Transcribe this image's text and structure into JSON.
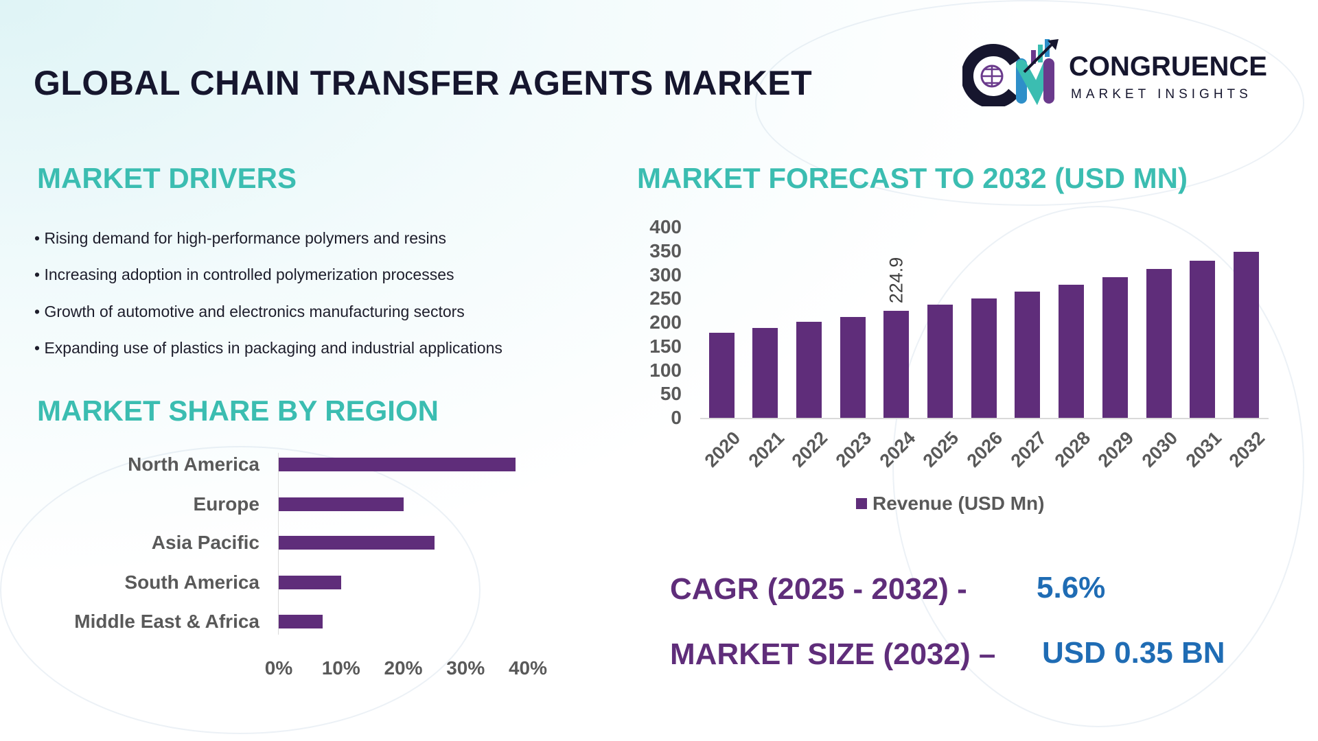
{
  "header": {
    "title": "GLOBAL CHAIN TRANSFER AGENTS MARKET",
    "logo": {
      "name": "CONGRUENCE",
      "tagline": "MARKET INSIGHTS",
      "mark": "CM"
    }
  },
  "drivers": {
    "title": "MARKET DRIVERS",
    "items": [
      "• Rising demand for high-performance polymers and resins",
      "• Increasing adoption in controlled polymerization processes",
      "• Growth of automotive and electronics manufacturing sectors",
      "• Expanding use of plastics in packaging and industrial applications"
    ]
  },
  "colors": {
    "teal": "#3bbdb1",
    "purple": "#5f2d7a",
    "blue": "#1f6cb4",
    "navy": "#16162e"
  },
  "chart_data": [
    {
      "type": "bar",
      "orientation": "horizontal",
      "title": "MARKET SHARE BY REGION",
      "categories": [
        "North America",
        "Europe",
        "Asia Pacific",
        "South America",
        "Middle East & Africa"
      ],
      "values": [
        38,
        20,
        25,
        10,
        7
      ],
      "unit": "%",
      "xlim": [
        0,
        40
      ],
      "xticks": [
        "0%",
        "10%",
        "20%",
        "30%",
        "40%"
      ],
      "grid": false
    },
    {
      "type": "bar",
      "title": "MARKET FORECAST TO 2032 (USD MN)",
      "categories": [
        "2020",
        "2021",
        "2022",
        "2023",
        "2024",
        "2025",
        "2026",
        "2027",
        "2028",
        "2029",
        "2030",
        "2031",
        "2032"
      ],
      "series": [
        {
          "name": "Revenue (USD Mn)",
          "values": [
            178,
            189,
            201,
            212,
            224.9,
            237.5,
            250.8,
            264.8,
            279.7,
            295.3,
            311.9,
            329.3,
            347.8
          ]
        }
      ],
      "ylim": [
        0,
        400
      ],
      "yticks": [
        "400",
        "350",
        "300",
        "250",
        "200",
        "150",
        "100",
        "50",
        "0"
      ],
      "data_labels": {
        "2024": "224.9"
      },
      "legend": "bottom",
      "grid": false
    }
  ],
  "stats": {
    "cagr_label": "CAGR (2025 - 2032) -",
    "cagr_value": "5.6%",
    "size_label": "MARKET SIZE (2032) –",
    "size_value": "USD 0.35 BN"
  }
}
